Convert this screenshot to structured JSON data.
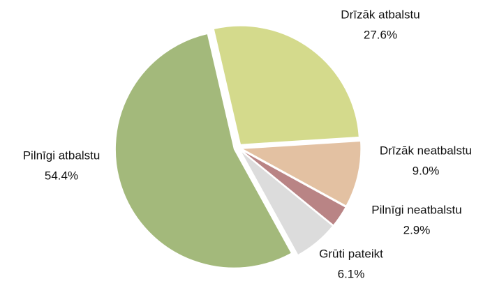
{
  "chart_data": {
    "type": "pie",
    "categories": [
      "Drīzāk atbalstu",
      "Drīzāk neatbalstu",
      "Pilnīgi neatbalstu",
      "Grūti pateikt",
      "Pilnīgi atbalstu"
    ],
    "values": [
      27.6,
      9.0,
      2.9,
      6.1,
      54.4
    ],
    "value_labels": [
      "27.6%",
      "9.0%",
      "2.9%",
      "6.1%",
      "54.4%"
    ],
    "colors": [
      "#d4da8c",
      "#e3c1a2",
      "#b98485",
      "#dcdcdc",
      "#a3b97b"
    ]
  }
}
